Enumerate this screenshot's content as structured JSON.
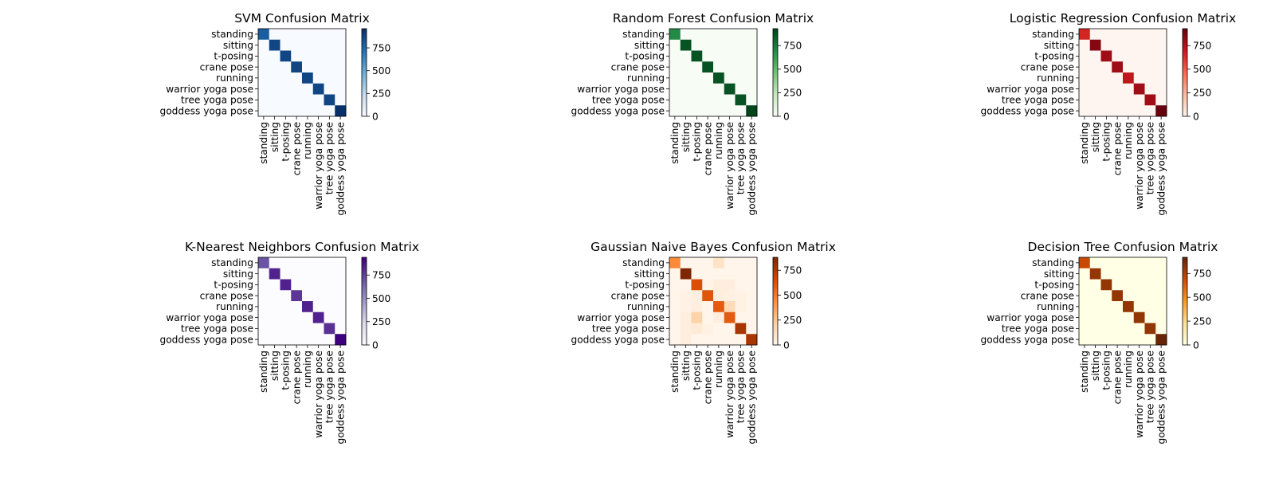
{
  "classes": [
    "standing",
    "sitting",
    "t-posing",
    "crane pose",
    "running",
    "warrior yoga pose",
    "tree yoga pose",
    "goddess yoga pose"
  ],
  "chart_data": [
    {
      "type": "heatmap",
      "title": "SVM Confusion Matrix",
      "colormap": "Blues",
      "colors": [
        "#f7fbff",
        "#c6dbef",
        "#6baed6",
        "#2171b5",
        "#08306b"
      ],
      "vmin": 0,
      "vmax": 960,
      "colorbar_ticks": [
        0,
        250,
        500,
        750
      ],
      "matrix": [
        [
          790,
          0,
          0,
          0,
          0,
          0,
          0,
          0
        ],
        [
          0,
          880,
          0,
          0,
          0,
          0,
          0,
          0
        ],
        [
          0,
          0,
          880,
          0,
          0,
          0,
          0,
          0
        ],
        [
          0,
          0,
          0,
          880,
          0,
          0,
          0,
          0
        ],
        [
          0,
          0,
          0,
          0,
          880,
          0,
          0,
          0
        ],
        [
          0,
          0,
          0,
          0,
          0,
          880,
          0,
          0
        ],
        [
          0,
          0,
          0,
          0,
          0,
          0,
          880,
          0
        ],
        [
          0,
          0,
          0,
          0,
          0,
          0,
          0,
          960
        ]
      ]
    },
    {
      "type": "heatmap",
      "title": "Random Forest Confusion Matrix",
      "colormap": "Greens",
      "colors": [
        "#f7fcf5",
        "#c7e9c0",
        "#74c476",
        "#238b45",
        "#00441b"
      ],
      "vmin": 0,
      "vmax": 930,
      "colorbar_ticks": [
        0,
        250,
        500,
        750
      ],
      "matrix": [
        [
          700,
          0,
          0,
          0,
          0,
          0,
          0,
          0
        ],
        [
          0,
          880,
          0,
          0,
          0,
          0,
          0,
          0
        ],
        [
          0,
          0,
          880,
          0,
          0,
          0,
          0,
          0
        ],
        [
          0,
          0,
          0,
          880,
          0,
          0,
          0,
          0
        ],
        [
          0,
          0,
          0,
          0,
          880,
          0,
          0,
          0
        ],
        [
          0,
          0,
          0,
          0,
          0,
          880,
          0,
          0
        ],
        [
          0,
          0,
          0,
          0,
          0,
          0,
          880,
          0
        ],
        [
          0,
          0,
          0,
          0,
          0,
          0,
          0,
          930
        ]
      ]
    },
    {
      "type": "heatmap",
      "title": "Logistic Regression Confusion Matrix",
      "colormap": "Reds",
      "colors": [
        "#fff5f0",
        "#fcbba1",
        "#fb6a4a",
        "#cb181d",
        "#67000d"
      ],
      "vmin": 0,
      "vmax": 930,
      "colorbar_ticks": [
        0,
        250,
        500,
        750
      ],
      "matrix": [
        [
          660,
          0,
          0,
          0,
          0,
          0,
          0,
          0
        ],
        [
          0,
          860,
          0,
          0,
          0,
          0,
          0,
          0
        ],
        [
          0,
          0,
          800,
          0,
          0,
          0,
          0,
          0
        ],
        [
          0,
          0,
          0,
          800,
          0,
          0,
          0,
          0
        ],
        [
          0,
          0,
          0,
          0,
          720,
          0,
          0,
          0
        ],
        [
          0,
          0,
          0,
          0,
          0,
          800,
          0,
          0
        ],
        [
          0,
          0,
          0,
          0,
          0,
          0,
          800,
          0
        ],
        [
          0,
          0,
          0,
          0,
          0,
          0,
          0,
          930
        ]
      ]
    },
    {
      "type": "heatmap",
      "title": "K-Nearest Neighbors Confusion Matrix",
      "colormap": "Purples",
      "colors": [
        "#fcfbfd",
        "#dadaeb",
        "#9e9ac8",
        "#6a51a3",
        "#3f007d"
      ],
      "vmin": 0,
      "vmax": 940,
      "colorbar_ticks": [
        0,
        250,
        500,
        750
      ],
      "matrix": [
        [
          700,
          0,
          0,
          0,
          0,
          0,
          0,
          0
        ],
        [
          0,
          840,
          0,
          0,
          0,
          0,
          0,
          0
        ],
        [
          0,
          0,
          840,
          0,
          0,
          0,
          0,
          0
        ],
        [
          0,
          0,
          0,
          780,
          0,
          0,
          0,
          0
        ],
        [
          0,
          0,
          0,
          0,
          840,
          0,
          0,
          0
        ],
        [
          0,
          0,
          0,
          0,
          0,
          840,
          0,
          0
        ],
        [
          0,
          0,
          0,
          0,
          0,
          0,
          800,
          0
        ],
        [
          0,
          0,
          0,
          0,
          0,
          0,
          0,
          940
        ]
      ]
    },
    {
      "type": "heatmap",
      "title": "Gaussian Naive Bayes Confusion Matrix",
      "colormap": "Oranges",
      "colors": [
        "#fff5eb",
        "#fdd0a2",
        "#fd8d3c",
        "#d94801",
        "#7f2704"
      ],
      "vmin": 0,
      "vmax": 880,
      "colorbar_ticks": [
        0,
        250,
        500,
        750
      ],
      "matrix": [
        [
          450,
          0,
          0,
          0,
          110,
          0,
          0,
          0
        ],
        [
          0,
          880,
          0,
          0,
          0,
          0,
          0,
          0
        ],
        [
          0,
          0,
          640,
          10,
          40,
          40,
          0,
          0
        ],
        [
          0,
          20,
          40,
          620,
          40,
          30,
          20,
          0
        ],
        [
          0,
          20,
          40,
          0,
          600,
          160,
          20,
          0
        ],
        [
          0,
          40,
          200,
          0,
          40,
          600,
          0,
          0
        ],
        [
          0,
          40,
          60,
          20,
          0,
          0,
          780,
          0
        ],
        [
          0,
          40,
          0,
          0,
          0,
          0,
          0,
          780
        ]
      ]
    },
    {
      "type": "heatmap",
      "title": "Decision Tree Confusion Matrix",
      "colormap": "YlOrBr",
      "colors": [
        "#ffffe5",
        "#fee391",
        "#fe9929",
        "#cc4c02",
        "#662506"
      ],
      "vmin": 0,
      "vmax": 920,
      "colorbar_ticks": [
        0,
        250,
        500,
        750
      ],
      "matrix": [
        [
          700,
          0,
          0,
          0,
          0,
          0,
          0,
          0
        ],
        [
          0,
          820,
          0,
          0,
          0,
          0,
          0,
          0
        ],
        [
          0,
          0,
          820,
          0,
          0,
          0,
          0,
          0
        ],
        [
          0,
          0,
          0,
          820,
          0,
          0,
          0,
          0
        ],
        [
          0,
          0,
          0,
          0,
          820,
          0,
          0,
          0
        ],
        [
          0,
          0,
          0,
          0,
          0,
          820,
          0,
          0
        ],
        [
          0,
          0,
          0,
          0,
          0,
          0,
          820,
          0
        ],
        [
          0,
          0,
          0,
          0,
          0,
          0,
          0,
          920
        ]
      ]
    }
  ]
}
